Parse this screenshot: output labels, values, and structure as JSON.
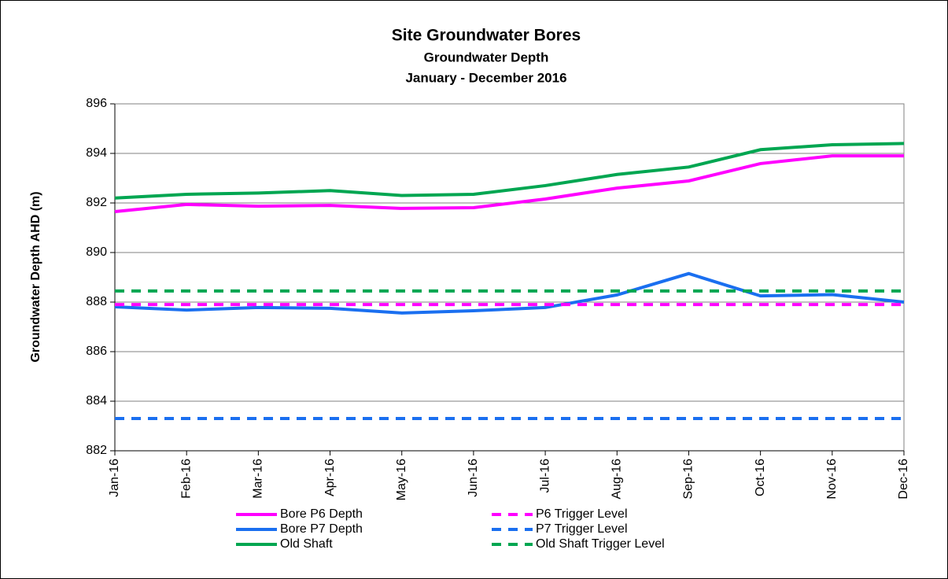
{
  "chart_data": {
    "type": "line",
    "title": "Site Groundwater Bores",
    "subtitle": [
      "Groundwater Depth",
      "January - December 2016"
    ],
    "ylabel": "Groundwater Depth AHD (m)",
    "categories": [
      "Jan-16",
      "Feb-16",
      "Mar-16",
      "Apr-16",
      "May-16",
      "Jun-16",
      "Jul-16",
      "Aug-16",
      "Sep-16",
      "Oct-16",
      "Nov-16",
      "Dec-16"
    ],
    "ylim": [
      882,
      896
    ],
    "yticks": [
      882,
      884,
      886,
      888,
      890,
      892,
      894,
      896
    ],
    "grid": true,
    "series": [
      {
        "name": "Bore P6 Depth",
        "color": "#ff00ff",
        "dashed": false,
        "values": [
          891.65,
          891.94,
          891.87,
          891.9,
          891.78,
          891.81,
          892.16,
          892.6,
          892.89,
          893.59,
          893.9,
          893.9
        ]
      },
      {
        "name": "Bore P7 Depth",
        "color": "#1a6ff0",
        "dashed": false,
        "values": [
          887.81,
          887.68,
          887.78,
          887.75,
          887.56,
          887.65,
          887.78,
          888.29,
          889.15,
          888.25,
          888.3,
          888.0
        ]
      },
      {
        "name": "Old Shaft",
        "color": "#00a651",
        "dashed": false,
        "values": [
          892.2,
          892.35,
          892.4,
          892.5,
          892.3,
          892.35,
          892.7,
          893.15,
          893.45,
          894.15,
          894.35,
          894.4
        ]
      },
      {
        "name": "P6 Trigger Level",
        "color": "#ff00ff",
        "dashed": true,
        "values": [
          887.9,
          887.9,
          887.9,
          887.9,
          887.9,
          887.9,
          887.9,
          887.9,
          887.9,
          887.9,
          887.9,
          887.9
        ]
      },
      {
        "name": "P7 Trigger Level",
        "color": "#1a6ff0",
        "dashed": true,
        "values": [
          883.3,
          883.3,
          883.3,
          883.3,
          883.3,
          883.3,
          883.3,
          883.3,
          883.3,
          883.3,
          883.3,
          883.3
        ]
      },
      {
        "name": "Old Shaft Trigger Level",
        "color": "#00a651",
        "dashed": true,
        "values": [
          888.45,
          888.45,
          888.45,
          888.45,
          888.45,
          888.45,
          888.45,
          888.45,
          888.45,
          888.45,
          888.45,
          888.45
        ]
      }
    ]
  }
}
